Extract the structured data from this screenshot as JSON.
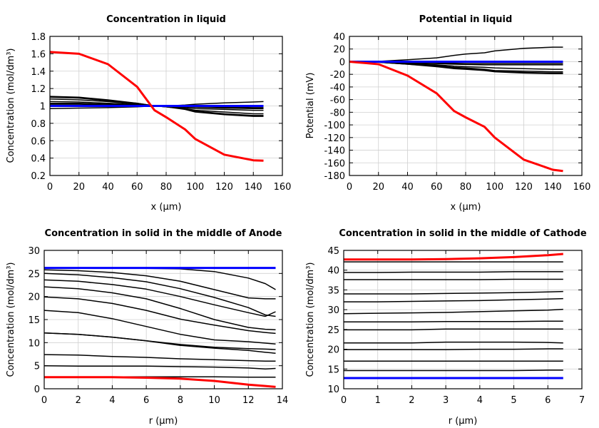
{
  "chart_data": [
    {
      "type": "line",
      "title": "Concentration in liquid",
      "xlabel": "x (µm)",
      "ylabel": "Concentration (mol/dm³)",
      "xlim": [
        0,
        160
      ],
      "ylim": [
        0.2,
        1.8
      ],
      "xticks": [
        0,
        20,
        40,
        60,
        80,
        100,
        120,
        140,
        160
      ],
      "yticks": [
        0.2,
        0.4,
        0.6,
        0.8,
        1,
        1.2,
        1.4,
        1.6,
        1.8
      ],
      "grid": true,
      "x": [
        0,
        20,
        40,
        60,
        72,
        80,
        93,
        100,
        120,
        140,
        147
      ],
      "series": [
        {
          "color": "#000000",
          "values": [
            1.11,
            1.1,
            1.07,
            1.03,
            1.0,
            0.99,
            0.96,
            0.93,
            0.9,
            0.88,
            0.88
          ]
        },
        {
          "color": "#000000",
          "values": [
            1.1,
            1.09,
            1.06,
            1.03,
            1.0,
            0.99,
            0.965,
            0.94,
            0.91,
            0.89,
            0.89
          ]
        },
        {
          "color": "#000000",
          "values": [
            1.08,
            1.07,
            1.05,
            1.02,
            1.0,
            0.99,
            0.97,
            0.95,
            0.93,
            0.91,
            0.91
          ]
        },
        {
          "color": "#000000",
          "values": [
            1.05,
            1.045,
            1.03,
            1.015,
            1.0,
            0.995,
            0.98,
            0.97,
            0.96,
            0.95,
            0.95
          ]
        },
        {
          "color": "#000000",
          "values": [
            1.03,
            1.03,
            1.02,
            1.01,
            1.0,
            0.998,
            0.99,
            0.985,
            0.975,
            0.97,
            0.97
          ]
        },
        {
          "color": "#000000",
          "values": [
            1.02,
            1.02,
            1.015,
            1.005,
            1.0,
            0.999,
            0.995,
            0.99,
            0.985,
            0.98,
            0.98
          ]
        },
        {
          "color": "#000000",
          "values": [
            0.97,
            0.975,
            0.98,
            0.99,
            1.0,
            1.0,
            1.01,
            1.02,
            1.035,
            1.045,
            1.05
          ]
        },
        {
          "color": "#0000ff",
          "values": [
            1,
            1,
            1,
            1,
            1,
            1,
            1,
            1,
            1,
            1,
            1
          ]
        },
        {
          "color": "#ff0000",
          "values": [
            1.62,
            1.6,
            1.48,
            1.22,
            0.95,
            0.87,
            0.73,
            0.62,
            0.44,
            0.375,
            0.37
          ]
        }
      ]
    },
    {
      "type": "line",
      "title": "Potential in liquid",
      "xlabel": "x (µm)",
      "ylabel": "Potential (mV)",
      "xlim": [
        0,
        160
      ],
      "ylim": [
        -180,
        40
      ],
      "xticks": [
        0,
        20,
        40,
        60,
        80,
        100,
        120,
        140,
        160
      ],
      "yticks": [
        -180,
        -160,
        -140,
        -120,
        -100,
        -80,
        -60,
        -40,
        -20,
        0,
        20,
        40
      ],
      "grid": true,
      "x": [
        0,
        20,
        40,
        60,
        72,
        80,
        93,
        100,
        120,
        140,
        147
      ],
      "series": [
        {
          "color": "#000000",
          "values": [
            0,
            0.5,
            3,
            6,
            10,
            12,
            14,
            17,
            21,
            23,
            23
          ]
        },
        {
          "color": "#000000",
          "values": [
            0,
            -1,
            -4,
            -8,
            -11,
            -12,
            -14,
            -16,
            -18,
            -19,
            -19
          ]
        },
        {
          "color": "#000000",
          "values": [
            0,
            -1,
            -4,
            -7,
            -10,
            -11,
            -13,
            -15,
            -17,
            -18,
            -18
          ]
        },
        {
          "color": "#000000",
          "values": [
            0,
            -1,
            -3,
            -6,
            -9,
            -10,
            -12,
            -14,
            -15,
            -16,
            -16
          ]
        },
        {
          "color": "#000000",
          "values": [
            0,
            -1,
            -3,
            -5,
            -7,
            -8,
            -9,
            -10,
            -11,
            -12,
            -12
          ]
        },
        {
          "color": "#000000",
          "values": [
            0,
            -0.5,
            -2,
            -3,
            -4,
            -4.5,
            -5,
            -5,
            -5,
            -5,
            -5
          ]
        },
        {
          "color": "#000000",
          "values": [
            0,
            -0.3,
            -1,
            -2,
            -2.5,
            -3,
            -3,
            -3,
            -3,
            -3,
            -3
          ]
        },
        {
          "color": "#0000ff",
          "values": [
            0,
            0,
            0,
            0,
            0,
            0,
            0,
            0,
            0,
            0,
            0
          ]
        },
        {
          "color": "#ff0000",
          "values": [
            0,
            -4,
            -22,
            -50,
            -78,
            -88,
            -103,
            -120,
            -155,
            -171,
            -173
          ]
        }
      ]
    },
    {
      "type": "line",
      "title": "Concentration in solid in the middle of Anode",
      "xlabel": "r (µm)",
      "ylabel": "Concentration (mol/dm³)",
      "xlim": [
        0,
        14
      ],
      "ylim": [
        0,
        30
      ],
      "xticks": [
        0,
        2,
        4,
        6,
        8,
        10,
        12,
        14
      ],
      "yticks": [
        0,
        5,
        10,
        15,
        20,
        25,
        30
      ],
      "grid": true,
      "x": [
        0,
        2,
        4,
        6,
        8,
        10,
        12,
        13,
        13.6
      ],
      "series": [
        {
          "color": "#000000",
          "values": [
            26.1,
            26.1,
            26.1,
            26.1,
            26,
            25.4,
            24,
            22.8,
            21.5
          ]
        },
        {
          "color": "#000000",
          "values": [
            25.8,
            25.6,
            25.2,
            24.5,
            23.3,
            21.5,
            19.7,
            19.5,
            19.5
          ]
        },
        {
          "color": "#000000",
          "values": [
            25,
            24.7,
            24.1,
            23.2,
            21.7,
            19.8,
            17.6,
            16,
            15.7
          ]
        },
        {
          "color": "#000000",
          "values": [
            23.6,
            23.3,
            22.6,
            21.6,
            20,
            18.2,
            16.5,
            15.7,
            16.7
          ]
        },
        {
          "color": "#000000",
          "values": [
            22.1,
            21.7,
            20.8,
            19.5,
            17.4,
            15,
            13.3,
            12.9,
            12.8
          ]
        },
        {
          "color": "#000000",
          "values": [
            19.9,
            19.5,
            18.5,
            17,
            15.1,
            13.8,
            12.6,
            12.2,
            12
          ]
        },
        {
          "color": "#000000",
          "values": [
            17,
            16.5,
            15.2,
            13.5,
            11.8,
            10.6,
            10.2,
            9.9,
            9.7
          ]
        },
        {
          "color": "#000000",
          "values": [
            12.1,
            11.8,
            11.2,
            10.4,
            9.6,
            9.0,
            8.7,
            8.6,
            8.5
          ]
        },
        {
          "color": "#000000",
          "values": [
            12.1,
            11.8,
            11.2,
            10.4,
            9.4,
            8.8,
            8.3,
            7.9,
            7.7
          ]
        },
        {
          "color": "#000000",
          "values": [
            7.4,
            7.3,
            7.0,
            6.8,
            6.5,
            6.3,
            6.1,
            6.0,
            6.0
          ]
        },
        {
          "color": "#000000",
          "values": [
            5,
            4.9,
            4.9,
            4.9,
            4.8,
            4.7,
            4.5,
            4.3,
            4.4
          ]
        },
        {
          "color": "#000000",
          "values": [
            2.6,
            2.6,
            2.6,
            2.6,
            2.6,
            2.6,
            2.5,
            2.5,
            2.5
          ]
        },
        {
          "color": "#0000ff",
          "values": [
            26.2,
            26.2,
            26.2,
            26.2,
            26.2,
            26.2,
            26.2,
            26.2,
            26.2
          ]
        },
        {
          "color": "#ff0000",
          "values": [
            2.5,
            2.5,
            2.5,
            2.4,
            2.2,
            1.7,
            0.9,
            0.6,
            0.4
          ]
        }
      ]
    },
    {
      "type": "line",
      "title": "Concentration in solid in the middle of Cathode",
      "xlabel": "r (µm)",
      "ylabel": "Concentration (mol/dm³)",
      "xlim": [
        0,
        7
      ],
      "ylim": [
        10,
        45
      ],
      "xticks": [
        0,
        1,
        2,
        3,
        4,
        5,
        6,
        7
      ],
      "yticks": [
        10,
        15,
        20,
        25,
        30,
        35,
        40,
        45
      ],
      "grid": true,
      "x": [
        0,
        1,
        2,
        3,
        4,
        5,
        6,
        6.45
      ],
      "series": [
        {
          "color": "#000000",
          "values": [
            42.1,
            42.1,
            42.1,
            42.1,
            42.1,
            42.1,
            42.1,
            42.1
          ]
        },
        {
          "color": "#000000",
          "values": [
            39.4,
            39.4,
            39.5,
            39.5,
            39.5,
            39.6,
            39.6,
            39.6
          ]
        },
        {
          "color": "#000000",
          "values": [
            37.6,
            37.6,
            37.6,
            37.6,
            37.6,
            37.7,
            37.7,
            37.7
          ]
        },
        {
          "color": "#000000",
          "values": [
            34.0,
            34.0,
            34.0,
            34.1,
            34.2,
            34.3,
            34.5,
            34.6
          ]
        },
        {
          "color": "#000000",
          "values": [
            32.0,
            32.0,
            32.1,
            32.2,
            32.3,
            32.5,
            32.7,
            32.8
          ]
        },
        {
          "color": "#000000",
          "values": [
            29.0,
            29.1,
            29.2,
            29.3,
            29.5,
            29.7,
            29.9,
            30.1
          ]
        },
        {
          "color": "#000000",
          "values": [
            26.9,
            26.9,
            26.9,
            27.0,
            27.0,
            27.0,
            27.1,
            27.1
          ]
        },
        {
          "color": "#000000",
          "values": [
            24.9,
            24.9,
            24.9,
            25.1,
            25.1,
            25.1,
            25.1,
            25.1
          ]
        },
        {
          "color": "#000000",
          "values": [
            21.6,
            21.6,
            21.6,
            21.8,
            21.8,
            21.8,
            21.7,
            21.6
          ]
        },
        {
          "color": "#000000",
          "values": [
            19.9,
            19.9,
            19.9,
            19.9,
            20.0,
            20.0,
            20.1,
            20.1
          ]
        },
        {
          "color": "#000000",
          "values": [
            17.0,
            17.0,
            17.0,
            17.0,
            17.0,
            17.0,
            17.0,
            17.0
          ]
        },
        {
          "color": "#000000",
          "values": [
            14.6,
            14.6,
            14.6,
            14.6,
            14.6,
            14.6,
            14.7,
            14.7
          ]
        },
        {
          "color": "#0000ff",
          "values": [
            12.7,
            12.7,
            12.7,
            12.7,
            12.7,
            12.7,
            12.7,
            12.7
          ]
        },
        {
          "color": "#ff0000",
          "values": [
            42.7,
            42.7,
            42.7,
            42.8,
            43.0,
            43.3,
            43.8,
            44.1
          ]
        }
      ]
    }
  ]
}
